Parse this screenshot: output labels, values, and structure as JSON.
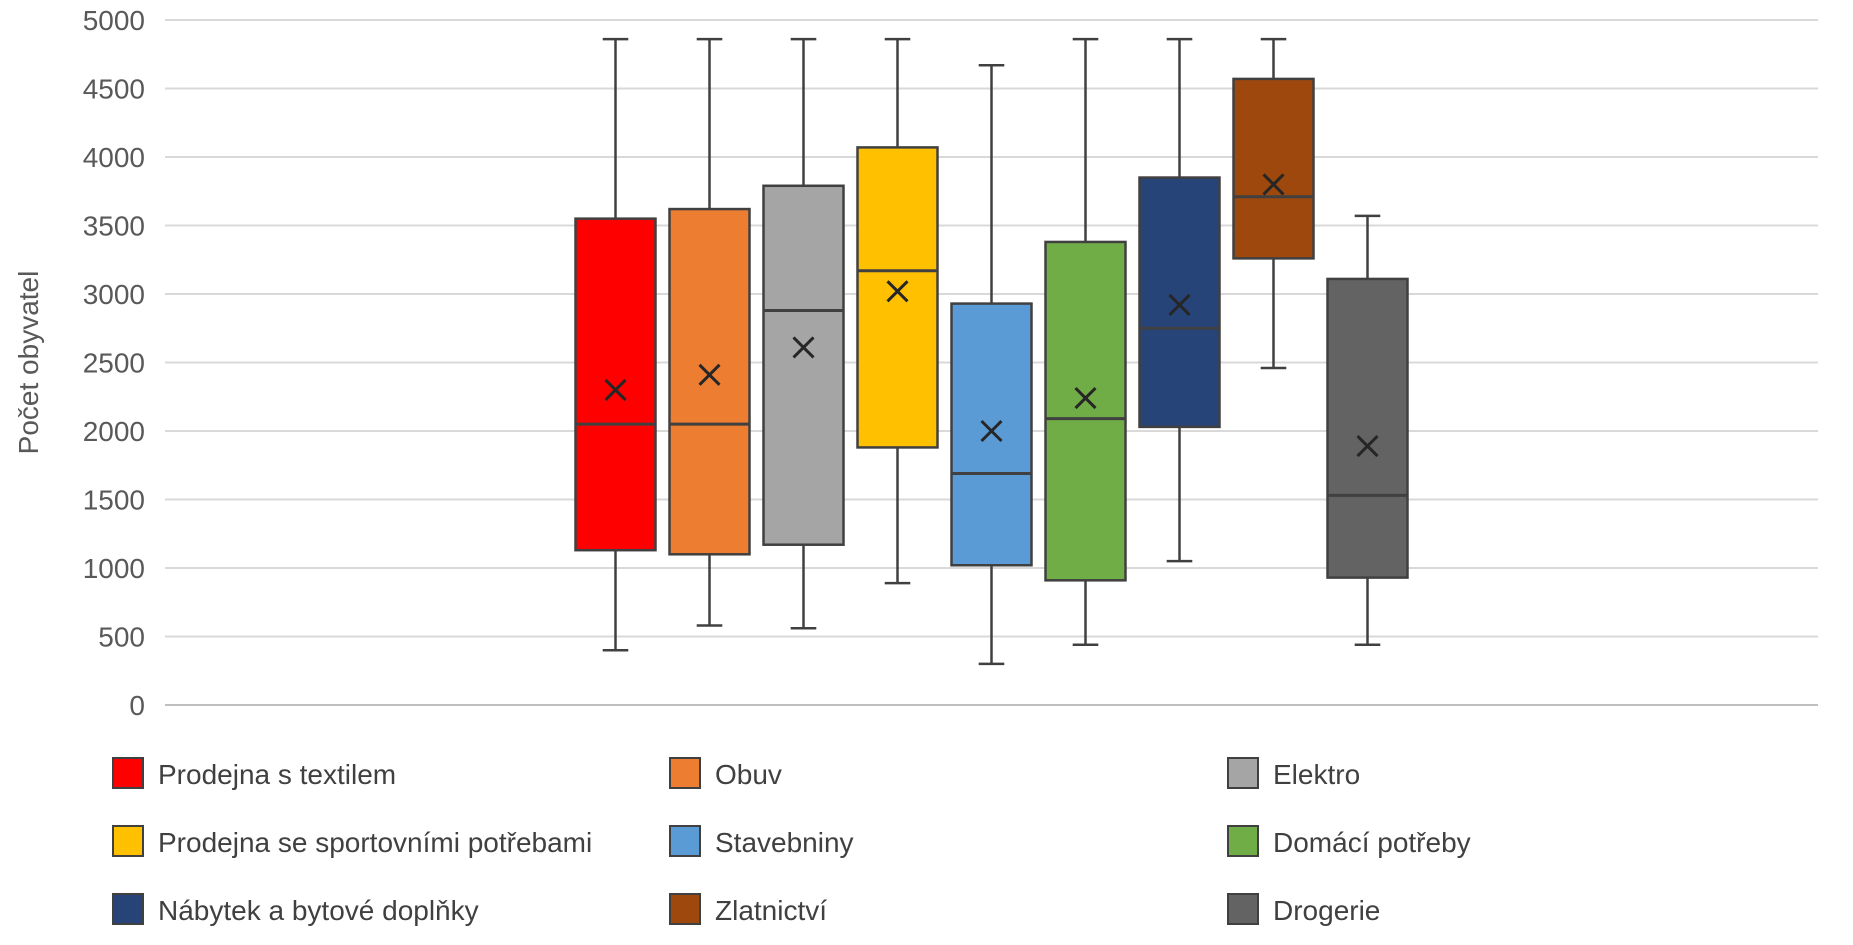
{
  "chart_data": {
    "type": "box",
    "ylabel": "Počet obyvatel",
    "ylim": [
      0,
      5000
    ],
    "ytick_step": 500,
    "yticks": [
      "0",
      "500",
      "1000",
      "1500",
      "2000",
      "2500",
      "3000",
      "3500",
      "4000",
      "4500",
      "5000"
    ],
    "grid": true,
    "legend_position": "bottom",
    "series": [
      {
        "name": "Prodejna s textilem",
        "color": "#FF0000",
        "min": 400,
        "q1": 1130,
        "median": 2050,
        "q3": 3550,
        "max": 4860,
        "mean": 2300
      },
      {
        "name": "Obuv",
        "color": "#ED7D31",
        "min": 580,
        "q1": 1100,
        "median": 2050,
        "q3": 3620,
        "max": 4860,
        "mean": 2410
      },
      {
        "name": "Elektro",
        "color": "#A5A5A5",
        "min": 560,
        "q1": 1170,
        "median": 2880,
        "q3": 3790,
        "max": 4860,
        "mean": 2610
      },
      {
        "name": "Prodejna se sportovními potřebami",
        "color": "#FFC000",
        "min": 890,
        "q1": 1880,
        "median": 3170,
        "q3": 4070,
        "max": 4860,
        "mean": 3020
      },
      {
        "name": "Stavebniny",
        "color": "#5B9BD5",
        "min": 300,
        "q1": 1020,
        "median": 1690,
        "q3": 2930,
        "max": 4670,
        "mean": 2000
      },
      {
        "name": "Domácí potřeby",
        "color": "#70AD47",
        "min": 440,
        "q1": 910,
        "median": 2090,
        "q3": 3380,
        "max": 4860,
        "mean": 2240
      },
      {
        "name": "Nábytek a bytové doplňky",
        "color": "#264478",
        "min": 1050,
        "q1": 2030,
        "median": 2750,
        "q3": 3850,
        "max": 4860,
        "mean": 2920
      },
      {
        "name": "Zlatnictví",
        "color": "#9E480E",
        "min": 2460,
        "q1": 3260,
        "median": 3710,
        "q3": 4570,
        "max": 4860,
        "mean": 3800
      },
      {
        "name": "Drogerie",
        "color": "#636363",
        "min": 440,
        "q1": 930,
        "median": 1530,
        "q3": 3110,
        "max": 3570,
        "mean": 1890
      }
    ]
  }
}
